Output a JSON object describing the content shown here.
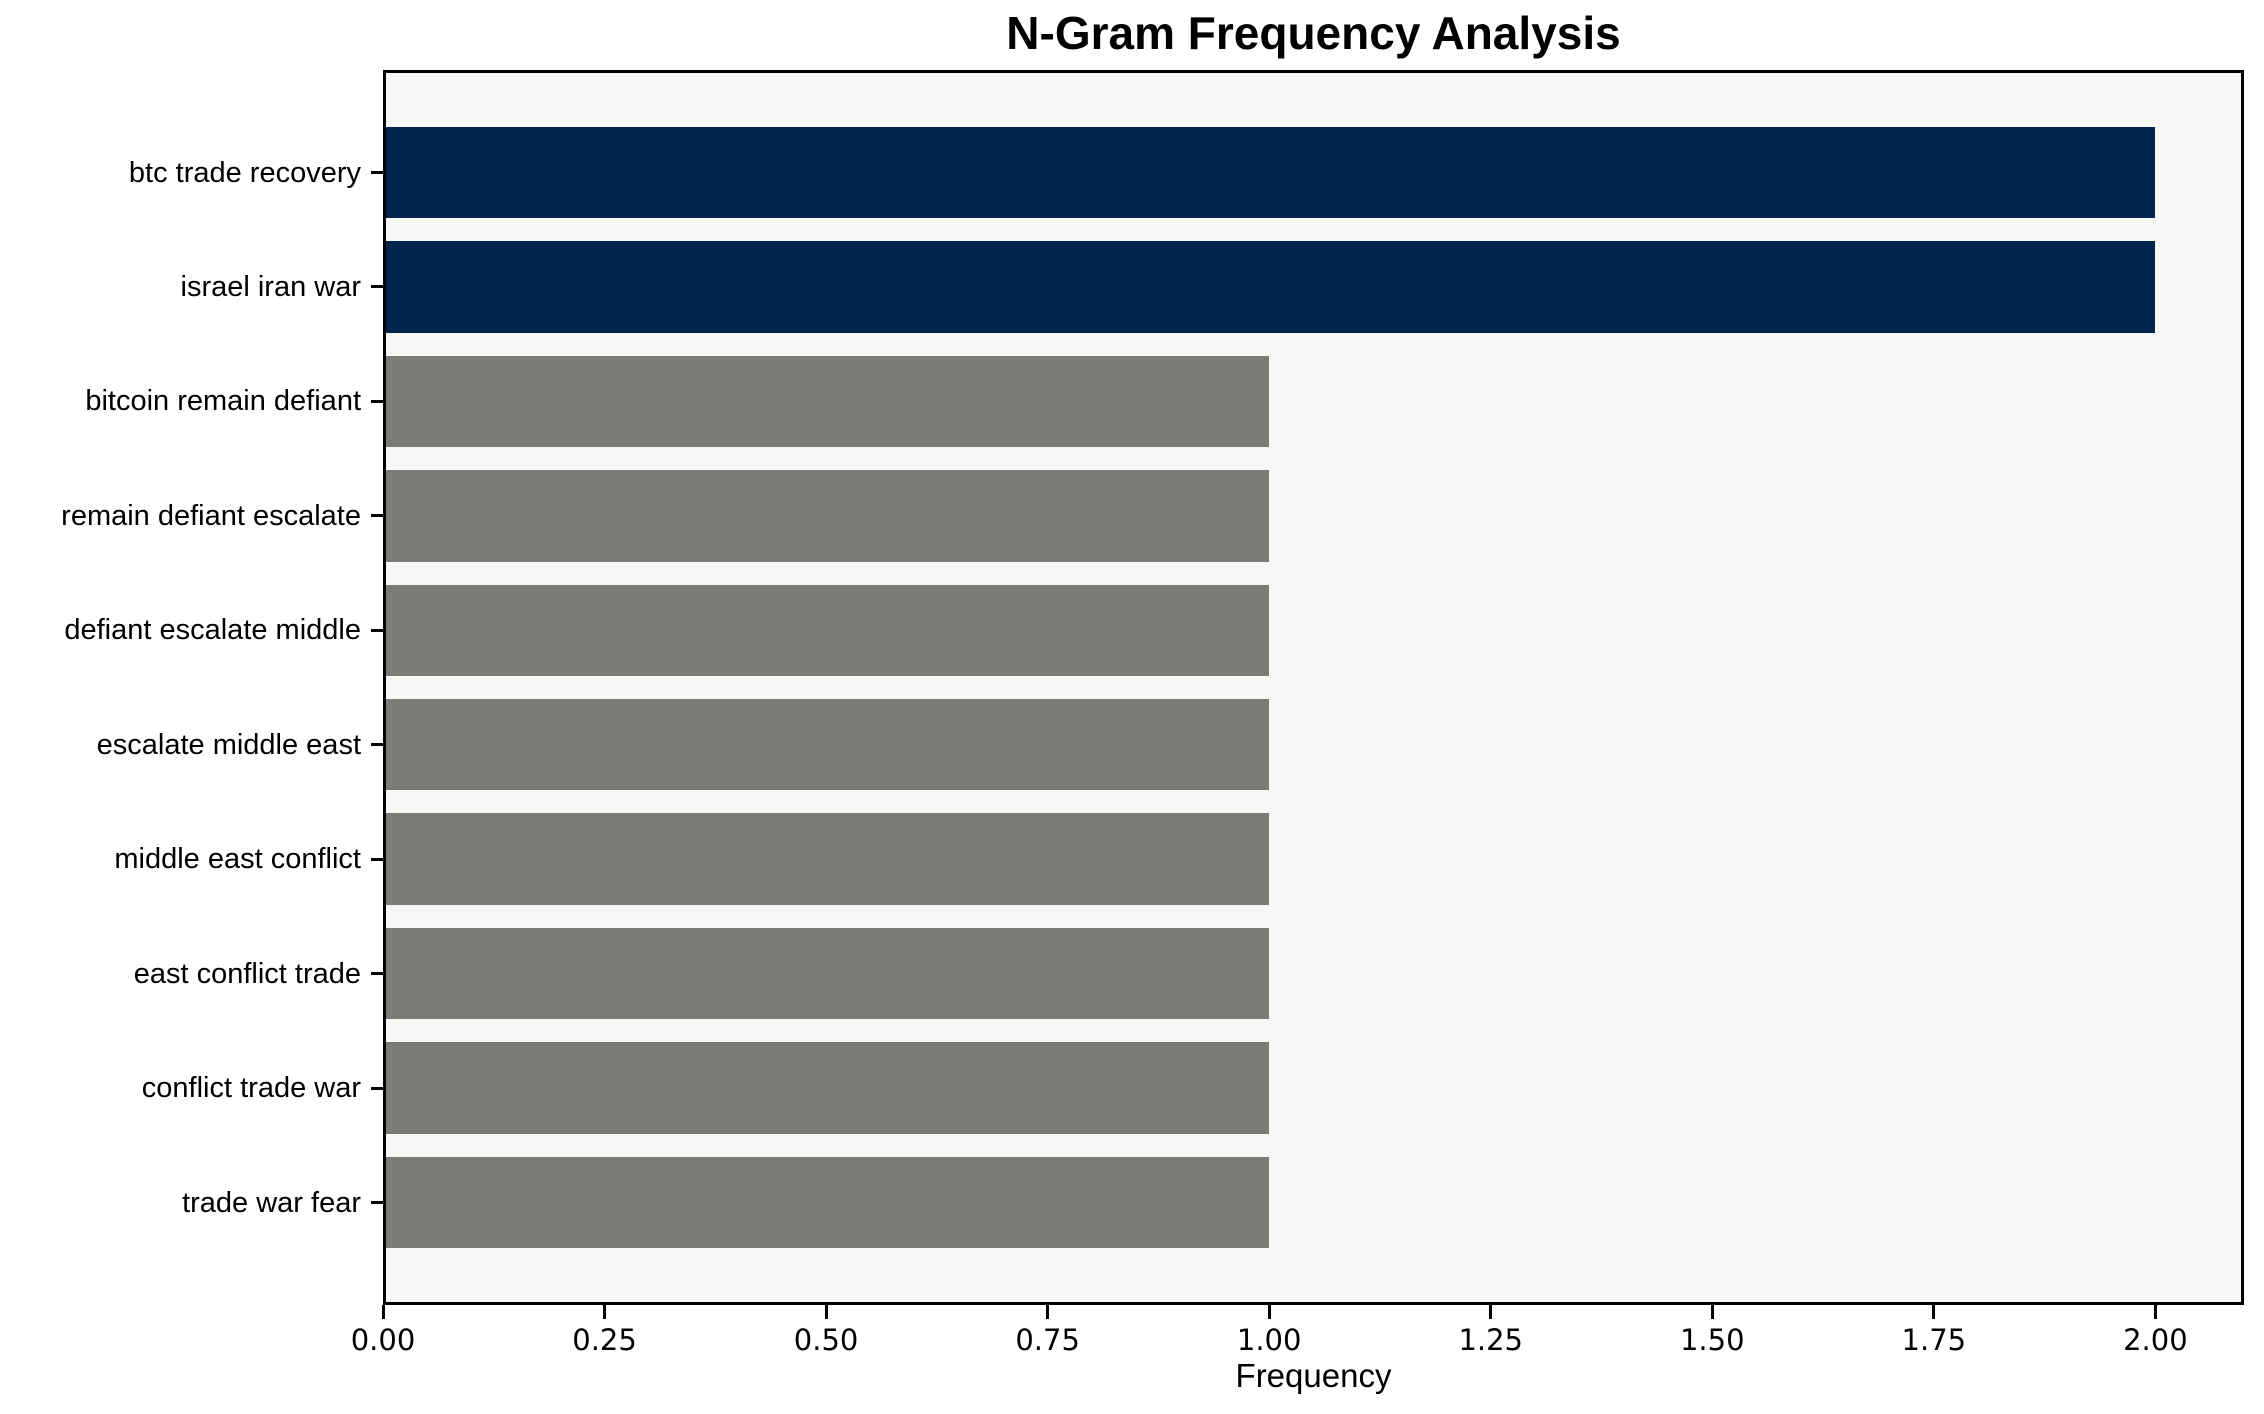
{
  "chart_data": {
    "type": "bar",
    "orientation": "horizontal",
    "title": "N-Gram Frequency Analysis",
    "xlabel": "Frequency",
    "ylabel": "",
    "categories": [
      "btc trade recovery",
      "israel iran war",
      "bitcoin remain defiant",
      "remain defiant escalate",
      "defiant escalate middle",
      "escalate middle east",
      "middle east conflict",
      "east conflict trade",
      "conflict trade war",
      "trade war fear"
    ],
    "values": [
      2,
      2,
      1,
      1,
      1,
      1,
      1,
      1,
      1,
      1
    ],
    "bar_colors": [
      "#02244d",
      "#02244d",
      "#7b7b78",
      "#7b7b78",
      "#7b7b78",
      "#7b7b78",
      "#7b7b78",
      "#7b7b78",
      "#7b7b78",
      "#7b7b78"
    ],
    "xlim": [
      0,
      2.1
    ],
    "xticks": [
      "0.00",
      "0.25",
      "0.50",
      "0.75",
      "1.00",
      "1.25",
      "1.50",
      "1.75",
      "2.00"
    ],
    "grid": false,
    "legend": null,
    "colors": {
      "highlight": "#02244d",
      "default": "#7b7b78",
      "plot_background": "#f7f7f6",
      "spine": "#000000",
      "text": "#000000"
    }
  }
}
